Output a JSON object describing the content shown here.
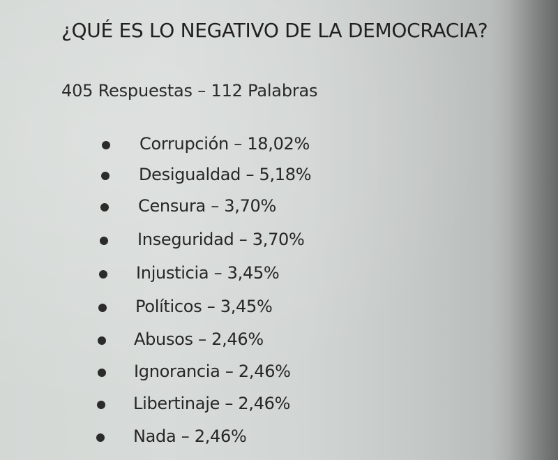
{
  "document": {
    "title": "¿QUÉ ES LO NEGATIVO DE LA DEMOCRACIA?",
    "subtitle": "405 Respuestas – 112 Palabras",
    "items": [
      {
        "text": "Corrupción – 18,02%"
      },
      {
        "text": "Desigualdad – 5,18%"
      },
      {
        "text": "Censura – 3,70%"
      },
      {
        "text": "Inseguridad – 3,70%"
      },
      {
        "text": "Injusticia – 3,45%"
      },
      {
        "text": "Políticos – 3,45%"
      },
      {
        "text": "Abusos – 2,46%"
      },
      {
        "text": "Ignorancia – 2,46%"
      },
      {
        "text": "Libertinaje – 2,46%"
      },
      {
        "text": "Nada – 2,46%"
      }
    ]
  }
}
